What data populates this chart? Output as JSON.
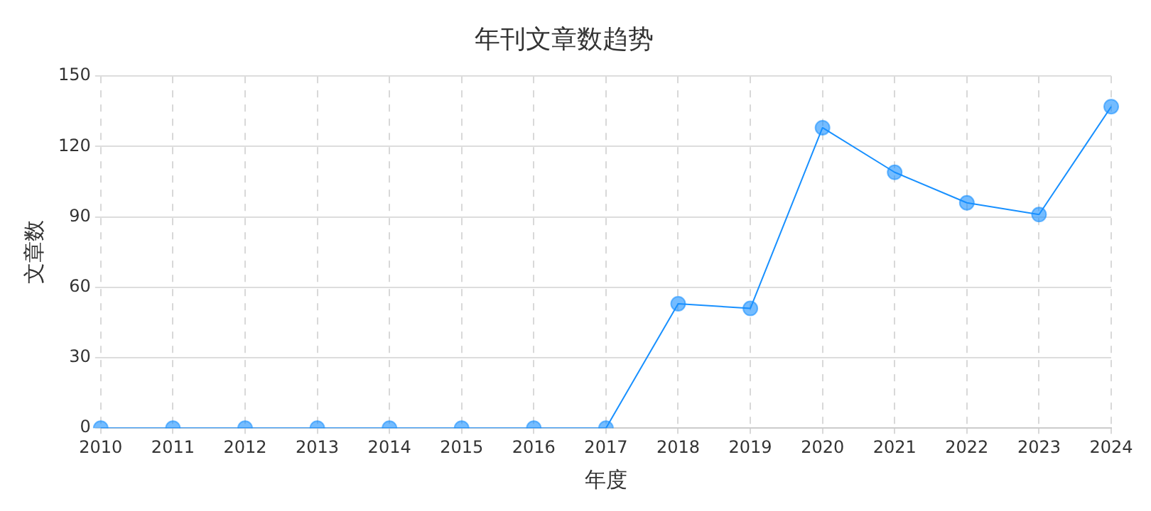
{
  "chart_data": {
    "type": "line",
    "title": "年刊文章数趋势",
    "xlabel": "年度",
    "ylabel": "文章数",
    "categories": [
      "2010",
      "2011",
      "2012",
      "2013",
      "2014",
      "2015",
      "2016",
      "2017",
      "2018",
      "2019",
      "2020",
      "2021",
      "2022",
      "2023",
      "2024"
    ],
    "series": [
      {
        "color": "#1890ff",
        "values": [
          0,
          0,
          0,
          0,
          0,
          0,
          0,
          0,
          53,
          51,
          128,
          109,
          96,
          91,
          137
        ]
      }
    ],
    "ylim": [
      0,
      150
    ],
    "yticks": [
      0,
      30,
      60,
      90,
      120,
      150
    ],
    "grid": true,
    "marker": "circle",
    "line_style": "solid",
    "legend": false
  }
}
